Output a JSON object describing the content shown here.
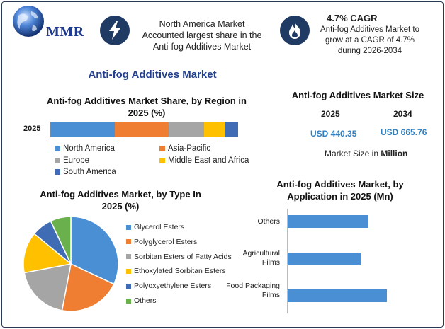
{
  "header": {
    "logo_text": "MMR",
    "highlight1": {
      "icon": "lightning-bolt-icon",
      "text": "North America Market Accounted largest share in the Anti-fog Additives Market"
    },
    "highlight2": {
      "icon": "flame-icon",
      "title": "4.7% CAGR",
      "text": "Anti-fog Additives Market to grow at a CAGR of 4.7% during 2026-2034"
    }
  },
  "main_title": "Anti-fog Additives Market",
  "region_section": {
    "title": "Anti-fog Additives Market Share, by Region in 2025 (%)"
  },
  "size_section": {
    "title": "Anti-fog Additives Market Size",
    "year1": "2025",
    "year2": "2034",
    "value1": "USD 440.35",
    "value2": "USD 665.76",
    "unit_prefix": "Market Size in",
    "unit_bold": "Million"
  },
  "type_section": {
    "title": "Anti-fog Additives Market, by Type In 2025 (%)"
  },
  "app_section": {
    "title": "Anti-fog Additives Market, by Application in 2025 (Mn)"
  },
  "colors": {
    "blue": "#4a8fd4",
    "orange": "#ef7d32",
    "gray": "#a5a5a5",
    "yellow": "#ffc000",
    "dark_blue": "#3f6cb5",
    "green": "#6ab04c",
    "icon_bg": "#1f3a63",
    "title_blue": "#23408e"
  },
  "chart_data": [
    {
      "type": "bar",
      "orientation": "horizontal",
      "stacked": true,
      "title": "Anti-fog Additives Market Share, by Region in 2025 (%)",
      "categories": [
        "2025"
      ],
      "series": [
        {
          "name": "North America",
          "values": [
            34
          ],
          "color": "#4a8fd4"
        },
        {
          "name": "Asia-Pacific",
          "values": [
            29
          ],
          "color": "#ef7d32"
        },
        {
          "name": "Europe",
          "values": [
            19
          ],
          "color": "#a5a5a5"
        },
        {
          "name": "Middle East and Africa",
          "values": [
            11
          ],
          "color": "#ffc000"
        },
        {
          "name": "South America",
          "values": [
            7
          ],
          "color": "#3f6cb5"
        }
      ],
      "legend": "bottom"
    },
    {
      "type": "pie",
      "title": "Anti-fog Additives Market, by Type In 2025 (%)",
      "slices": [
        {
          "label": "Glycerol Esters",
          "value": 32,
          "color": "#4a8fd4"
        },
        {
          "label": "Polyglycerol Esters",
          "value": 21,
          "color": "#ef7d32"
        },
        {
          "label": "Sorbitan Esters of Fatty Acids",
          "value": 19,
          "color": "#a5a5a5"
        },
        {
          "label": "Ethoxylated Sorbitan Esters",
          "value": 14,
          "color": "#ffc000"
        },
        {
          "label": "Polyoxyethylene Esters",
          "value": 7,
          "color": "#3f6cb5"
        },
        {
          "label": "Others",
          "value": 7,
          "color": "#6ab04c"
        }
      ],
      "legend": "right"
    },
    {
      "type": "bar",
      "orientation": "horizontal",
      "title": "Anti-fog Additives Market, by Application in 2025 (Mn)",
      "categories": [
        "Others",
        "Agricultural Films",
        "Food Packaging Films"
      ],
      "values": [
        118,
        108,
        145
      ],
      "color": "#4a8fd4",
      "xlim": [
        0,
        150
      ]
    }
  ]
}
